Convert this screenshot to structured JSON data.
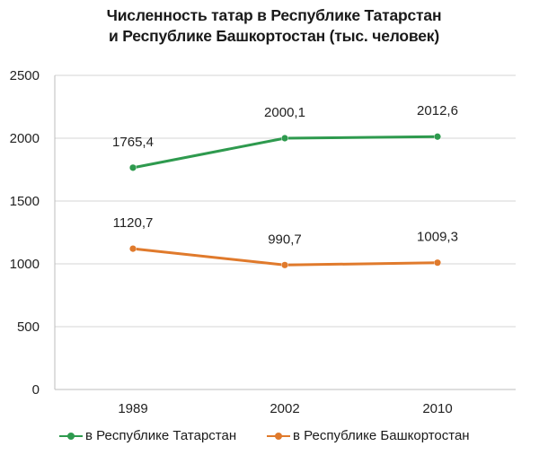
{
  "chart_data": {
    "type": "line",
    "title_lines": [
      "Численность татар в Республике Татарстан",
      "и Республике Башкортостан (тыс. человек)"
    ],
    "categories": [
      "1989",
      "2002",
      "2010"
    ],
    "series": [
      {
        "name": "в Республике Татарстан",
        "values": [
          1765.4,
          2000.1,
          2012.6
        ],
        "labels": [
          "1765,4",
          "2000,1",
          "2012,6"
        ],
        "color": "#2e9a4e"
      },
      {
        "name": "в Республике Башкортостан",
        "values": [
          1120.7,
          990.7,
          1009.3
        ],
        "labels": [
          "1120,7",
          "990,7",
          "1009,3"
        ],
        "color": "#e07a2c"
      }
    ],
    "ylim": [
      0,
      2500
    ],
    "yticks": [
      0,
      500,
      1000,
      1500,
      2000,
      2500
    ],
    "ytick_labels": [
      "0",
      "500",
      "1000",
      "1500",
      "2000",
      "2500"
    ],
    "grid": true,
    "legend_position": "bottom"
  }
}
